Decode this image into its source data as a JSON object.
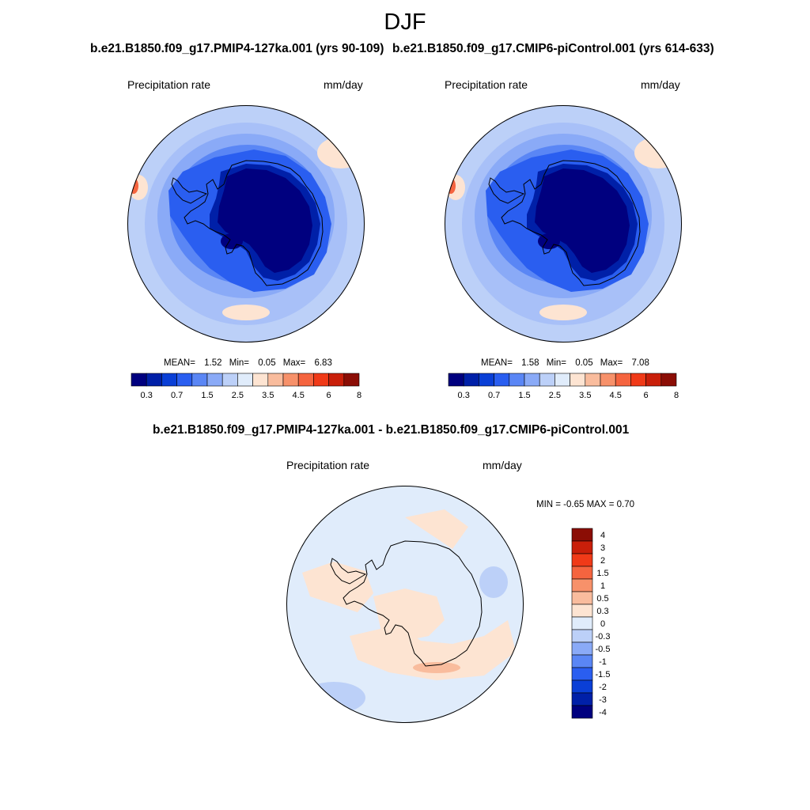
{
  "figure": {
    "season": "DJF"
  },
  "panels": [
    {
      "id": "pmip4",
      "title": "b.e21.B1850.f09_g17.PMIP4-127ka.001 (yrs 90-109)",
      "variable": "Precipitation rate",
      "units": "mm/day",
      "stats": {
        "mean_label": "MEAN=",
        "mean": "1.52",
        "min_label": "Min=",
        "min": "0.05",
        "max_label": "Max=",
        "max": "6.83"
      }
    },
    {
      "id": "picontrol",
      "title": "b.e21.B1850.f09_g17.CMIP6-piControl.001 (yrs 614-633)",
      "variable": "Precipitation rate",
      "units": "mm/day",
      "stats": {
        "mean_label": "MEAN=",
        "mean": "1.58",
        "min_label": "Min=",
        "min": "0.05",
        "max_label": "Max=",
        "max": "7.08"
      }
    }
  ],
  "diff_panel": {
    "title": "b.e21.B1850.f09_g17.PMIP4-127ka.001 - b.e21.B1850.f09_g17.CMIP6-piControl.001",
    "variable": "Precipitation rate",
    "units": "mm/day",
    "stats": "MIN =  -0.65 MAX =   0.70"
  },
  "colorbar_abs": {
    "colors": [
      "#00007f",
      "#0020a8",
      "#0a3fd6",
      "#2a5ef0",
      "#5a86f5",
      "#8aaaf7",
      "#bcd0f8",
      "#e0ecfb",
      "#fde4d2",
      "#f9bc9d",
      "#f7916a",
      "#f5643f",
      "#f03a18",
      "#c91f0a",
      "#8b0d05"
    ],
    "labels": [
      "0.3",
      "0.7",
      "1.5",
      "2.5",
      "3.5",
      "4.5",
      "6",
      "8"
    ]
  },
  "colorbar_diff": {
    "colors": [
      "#8b0d05",
      "#c91f0a",
      "#f03a18",
      "#f5643f",
      "#f7916a",
      "#f9bc9d",
      "#fde4d2",
      "#e0ecfb",
      "#bcd0f8",
      "#8aaaf7",
      "#5a86f5",
      "#2a5ef0",
      "#0a3fd6",
      "#0020a8",
      "#00007f"
    ],
    "labels": [
      "4",
      "3",
      "2",
      "1.5",
      "1",
      "0.5",
      "0.3",
      "0",
      "-0.3",
      "-0.5",
      "-1",
      "-1.5",
      "-2",
      "-3",
      "-4"
    ]
  },
  "map_colors": {
    "ocean_outer": "#bcd0f8",
    "ocean_mid": "#8aaaf7",
    "ocean_inner": "#5a86f5",
    "coast_band": "#2a5ef0",
    "interior": "#00007f",
    "interior_edge": "#0020a8",
    "warm_patch": "#fde4d2",
    "hot_spot": "#f5643f",
    "diff_neg": "#e0ecfb",
    "diff_neg2": "#bcd0f8",
    "diff_pos": "#fde4d2",
    "diff_pos2": "#f9bc9d",
    "coastline": "#000000"
  }
}
